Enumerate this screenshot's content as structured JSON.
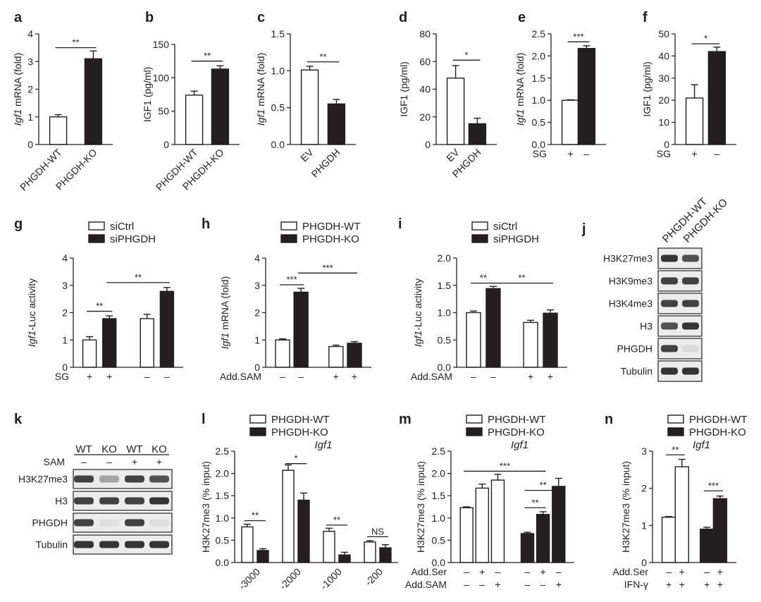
{
  "figure": {
    "panels_note": "Multi-panel figure: Igf1 regulation by PHGDH / serine / SAM"
  },
  "chart_data": [
    {
      "id": "a",
      "type": "bar",
      "panel_letter": "a",
      "ylabel": "Igf1 mRNA (fold)",
      "ylabel_italic": "Igf1",
      "ylabel_rest": " mRNA (fold)",
      "ylim": [
        0,
        4
      ],
      "yticks": [
        0,
        1,
        2,
        3,
        4
      ],
      "categories": [
        "PHGDH-WT",
        "PHGDH-KO"
      ],
      "x_rotate": true,
      "values": [
        1.0,
        3.1
      ],
      "errors": [
        0.08,
        0.28
      ],
      "fills": [
        "open",
        "filled"
      ],
      "sig": [
        {
          "from": 0,
          "to": 1,
          "label": "**",
          "y": 3.5
        }
      ]
    },
    {
      "id": "b",
      "type": "bar",
      "panel_letter": "b",
      "ylabel": "IGF1 (pg/ml)",
      "ylim": [
        0,
        150
      ],
      "yticks": [
        0,
        50,
        100,
        150
      ],
      "categories": [
        "PHGDH-WT",
        "PHGDH-KO"
      ],
      "x_rotate": true,
      "values": [
        74,
        113
      ],
      "errors": [
        6,
        5
      ],
      "fills": [
        "open",
        "filled"
      ],
      "sig": [
        {
          "from": 0,
          "to": 1,
          "label": "**",
          "y": 125
        }
      ]
    },
    {
      "id": "c",
      "type": "bar",
      "panel_letter": "c",
      "ylabel": "Igf1 mRNA (fold)",
      "ylabel_italic": "Igf1",
      "ylabel_rest": " mRNA (fold)",
      "ylim": [
        0,
        1.5
      ],
      "yticks": [
        0.0,
        0.5,
        1.0,
        1.5
      ],
      "tick_decimals": 1,
      "categories": [
        "EV",
        "PHGDH"
      ],
      "x_rotate": true,
      "values": [
        1.01,
        0.55
      ],
      "errors": [
        0.05,
        0.06
      ],
      "fills": [
        "open",
        "filled"
      ],
      "sig": [
        {
          "from": 0,
          "to": 1,
          "label": "**",
          "y": 1.12
        }
      ]
    },
    {
      "id": "d",
      "type": "bar",
      "panel_letter": "d",
      "ylabel": "IGF1 (pg/ml)",
      "ylim": [
        0,
        80
      ],
      "yticks": [
        0,
        20,
        40,
        60,
        80
      ],
      "categories": [
        "EV",
        "PHGDH"
      ],
      "x_rotate": true,
      "values": [
        48,
        15
      ],
      "errors": [
        9,
        4
      ],
      "fills": [
        "open",
        "filled"
      ],
      "sig": [
        {
          "from": 0,
          "to": 1,
          "label": "*",
          "y": 61
        }
      ]
    },
    {
      "id": "e",
      "type": "bar",
      "panel_letter": "e",
      "ylabel": "Igf1 mRNA (fold)",
      "ylabel_italic": "Igf1",
      "ylabel_rest": " mRNA (fold)",
      "ylim": [
        0,
        2.5
      ],
      "yticks": [
        0.0,
        0.5,
        1.0,
        1.5,
        2.0,
        2.5
      ],
      "tick_decimals": 1,
      "categories": [
        "",
        ""
      ],
      "x_rotate": false,
      "values": [
        1.0,
        2.17
      ],
      "errors": [
        0.01,
        0.06
      ],
      "fills": [
        "open",
        "filled"
      ],
      "sig": [
        {
          "from": 0,
          "to": 1,
          "label": "***",
          "y": 2.32
        }
      ],
      "factors": [
        {
          "name": "SG",
          "signs": [
            "+",
            "–"
          ]
        }
      ]
    },
    {
      "id": "f",
      "type": "bar",
      "panel_letter": "f",
      "ylabel": "IGF1 (pg/ml)",
      "ylim": [
        0,
        50
      ],
      "yticks": [
        0,
        10,
        20,
        30,
        40,
        50
      ],
      "categories": [
        "",
        ""
      ],
      "x_rotate": false,
      "values": [
        21,
        42
      ],
      "errors": [
        6,
        2
      ],
      "fills": [
        "open",
        "filled"
      ],
      "sig": [
        {
          "from": 0,
          "to": 1,
          "label": "*",
          "y": 45.5
        }
      ],
      "factors": [
        {
          "name": "SG",
          "signs": [
            "+",
            "–"
          ]
        }
      ]
    },
    {
      "id": "g",
      "type": "bar",
      "panel_letter": "g",
      "ylabel": "Igf1-Luc activity",
      "ylabel_italic": "Igf1",
      "ylabel_rest": "-Luc activity",
      "ylim": [
        0,
        4
      ],
      "yticks": [
        0,
        1,
        2,
        3,
        4
      ],
      "legend": [
        "siCtrl",
        "siPHGDH"
      ],
      "legend_position": "top",
      "categories": [
        "",
        "",
        "",
        ""
      ],
      "x_rotate": false,
      "bar_gaps": [
        0,
        1,
        0
      ],
      "values": [
        1.0,
        1.78,
        1.78,
        2.78
      ],
      "errors": [
        0.12,
        0.1,
        0.16,
        0.14
      ],
      "fills": [
        "open",
        "filled",
        "open",
        "filled"
      ],
      "sig": [
        {
          "from": 0,
          "to": 1,
          "label": "**",
          "y": 2.05
        },
        {
          "from": 1,
          "to": 3,
          "label": "**",
          "y": 3.1
        }
      ],
      "factors": [
        {
          "name": "SG",
          "signs": [
            "+",
            "+",
            "–",
            "–"
          ]
        }
      ]
    },
    {
      "id": "h",
      "type": "bar",
      "panel_letter": "h",
      "ylabel": "Igf1 mRNA (fold)",
      "ylabel_italic": "Igf1",
      "ylabel_rest": " mRNA (fold)",
      "ylim": [
        0,
        4
      ],
      "yticks": [
        0,
        1,
        2,
        3,
        4
      ],
      "legend": [
        "PHGDH-WT",
        "PHGDH-KO"
      ],
      "legend_position": "top",
      "categories": [
        "",
        "",
        "",
        ""
      ],
      "x_rotate": false,
      "bar_gaps": [
        0,
        1,
        0
      ],
      "values": [
        1.0,
        2.75,
        0.76,
        0.88
      ],
      "errors": [
        0.04,
        0.14,
        0.05,
        0.06
      ],
      "fills": [
        "open",
        "filled",
        "open",
        "filled"
      ],
      "sig": [
        {
          "from": 0,
          "to": 1,
          "label": "***",
          "y": 3.02
        },
        {
          "from": 1,
          "to": 3,
          "label": "***",
          "y": 3.45
        }
      ],
      "factors": [
        {
          "name": "Add.SAM",
          "signs": [
            "–",
            "–",
            "+",
            "+"
          ]
        }
      ]
    },
    {
      "id": "i",
      "type": "bar",
      "panel_letter": "i",
      "ylabel": "Igf1-Luc activity",
      "ylabel_italic": "Igf1",
      "ylabel_rest": "-Luc activity",
      "ylim": [
        0,
        2.0
      ],
      "yticks": [
        0.0,
        0.5,
        1.0,
        1.5,
        2.0
      ],
      "tick_decimals": 1,
      "legend": [
        "siCtrl",
        "siPHGDH"
      ],
      "legend_position": "top",
      "categories": [
        "",
        "",
        "",
        ""
      ],
      "x_rotate": false,
      "bar_gaps": [
        0,
        1,
        0
      ],
      "values": [
        1.0,
        1.44,
        0.82,
        0.99
      ],
      "errors": [
        0.03,
        0.04,
        0.04,
        0.06
      ],
      "fills": [
        "open",
        "filled",
        "open",
        "filled"
      ],
      "sig": [
        {
          "from": 0,
          "to": 1,
          "label": "**",
          "y": 1.54
        },
        {
          "from": 1,
          "to": 3,
          "label": "**",
          "y": 1.54
        }
      ],
      "factors": [
        {
          "name": "Add.SAM",
          "signs": [
            "–",
            "–",
            "+",
            "+"
          ]
        }
      ]
    },
    {
      "id": "l",
      "type": "bar",
      "panel_letter": "l",
      "subtitle": "Igf1",
      "ylabel": "H3K27me3 (% input)",
      "ylim": [
        0,
        2.5
      ],
      "yticks": [
        0.0,
        0.5,
        1.0,
        1.5,
        2.0,
        2.5
      ],
      "tick_decimals": 1,
      "legend": [
        "PHGDH-WT",
        "PHGDH-KO"
      ],
      "legend_position": "top",
      "group_labels": [
        "-3000",
        "-2000",
        "-1000",
        "-200"
      ],
      "group_label_rotate": true,
      "values": [
        [
          0.8,
          0.27
        ],
        [
          2.07,
          1.4
        ],
        [
          0.7,
          0.17
        ],
        [
          0.46,
          0.33
        ]
      ],
      "errors": [
        [
          0.06,
          0.04
        ],
        [
          0.12,
          0.16
        ],
        [
          0.07,
          0.06
        ],
        [
          0.03,
          0.07
        ]
      ],
      "sig": [
        {
          "group": 0,
          "label": "**",
          "y": 0.94
        },
        {
          "group": 1,
          "label": "*",
          "y": 2.22
        },
        {
          "group": 2,
          "label": "**",
          "y": 0.84
        },
        {
          "group": 3,
          "label": "NS",
          "y": 0.58
        }
      ]
    },
    {
      "id": "m",
      "type": "bar",
      "panel_letter": "m",
      "subtitle": "Igf1",
      "ylabel": "H3K27me3 (% input)",
      "ylim": [
        0,
        2.5
      ],
      "yticks": [
        0.0,
        0.5,
        1.0,
        1.5,
        2.0,
        2.5
      ],
      "tick_decimals": 1,
      "legend": [
        "PHGDH-WT",
        "PHGDH-KO"
      ],
      "legend_position": "top",
      "categories": [
        "",
        "",
        "",
        "",
        "",
        ""
      ],
      "x_rotate": false,
      "bar_gaps": [
        0,
        0,
        1,
        0,
        0
      ],
      "values": [
        1.23,
        1.67,
        1.85,
        0.65,
        1.08,
        1.71
      ],
      "errors": [
        0.02,
        0.09,
        0.13,
        0.03,
        0.06,
        0.18
      ],
      "fills": [
        "open",
        "open",
        "open",
        "filled",
        "filled",
        "filled"
      ],
      "sig": [
        {
          "from": 0,
          "to": 4,
          "label": "***",
          "y": 2.05
        },
        {
          "from": 3,
          "to": 4,
          "label": "**",
          "y": 1.23
        },
        {
          "from": 3,
          "to": 5,
          "label": "**",
          "y": 1.62
        }
      ],
      "factors": [
        {
          "name": "Add.Ser",
          "signs": [
            "–",
            "+",
            "–",
            "–",
            "+",
            "–"
          ]
        },
        {
          "name": "Add.SAM",
          "signs": [
            "–",
            "–",
            "+",
            "–",
            "–",
            "+"
          ]
        }
      ]
    },
    {
      "id": "n",
      "type": "bar",
      "panel_letter": "n",
      "subtitle": "Igf1",
      "ylabel": "H3K27me3 (% input)",
      "ylim": [
        0,
        3
      ],
      "yticks": [
        0,
        1,
        2,
        3
      ],
      "legend": [
        "PHGDH-WT",
        "PHGDH-KO"
      ],
      "legend_position": "top",
      "categories": [
        "",
        "",
        "",
        ""
      ],
      "x_rotate": false,
      "bar_gaps": [
        0,
        1,
        0
      ],
      "values": [
        1.22,
        2.58,
        0.9,
        1.72
      ],
      "errors": [
        0.02,
        0.2,
        0.05,
        0.07
      ],
      "fills": [
        "open",
        "open",
        "filled",
        "filled"
      ],
      "sig": [
        {
          "from": 0,
          "to": 1,
          "label": "**",
          "y": 2.9
        },
        {
          "from": 2,
          "to": 3,
          "label": "***",
          "y": 1.93
        }
      ],
      "factors": [
        {
          "name": "Add.Ser",
          "signs": [
            "–",
            "+",
            "–",
            "+"
          ]
        },
        {
          "name": "IFN-γ",
          "signs": [
            "+",
            "+",
            "+",
            "+"
          ]
        }
      ]
    }
  ],
  "blots": [
    {
      "id": "j",
      "panel_letter": "j",
      "lane_labels": [
        "PHGDH-WT",
        "PHGDH-KO"
      ],
      "rows": [
        {
          "label": "H3K27me3",
          "intensity": [
            0.95,
            0.85
          ]
        },
        {
          "label": "H3K9me3",
          "intensity": [
            0.9,
            0.9
          ]
        },
        {
          "label": "H3K4me3",
          "intensity": [
            0.9,
            0.9
          ]
        },
        {
          "label": "H3",
          "intensity": [
            0.85,
            0.95
          ]
        },
        {
          "label": "PHGDH",
          "intensity": [
            0.9,
            0.15
          ]
        },
        {
          "label": "Tubulin",
          "intensity": [
            0.95,
            0.95
          ]
        }
      ]
    },
    {
      "id": "k",
      "panel_letter": "k",
      "lane_labels": [
        "WT",
        "KO",
        "WT",
        "KO"
      ],
      "factor": {
        "name": "SAM",
        "signs": [
          "–",
          "–",
          "+",
          "+"
        ]
      },
      "rows": [
        {
          "label": "H3K27me3",
          "intensity": [
            0.9,
            0.5,
            0.9,
            0.85
          ]
        },
        {
          "label": "H3",
          "intensity": [
            0.9,
            0.9,
            0.9,
            0.95
          ]
        },
        {
          "label": "PHGDH",
          "intensity": [
            0.9,
            0.12,
            0.9,
            0.12
          ]
        },
        {
          "label": "Tubulin",
          "intensity": [
            0.95,
            0.95,
            0.95,
            0.95
          ]
        }
      ]
    }
  ]
}
